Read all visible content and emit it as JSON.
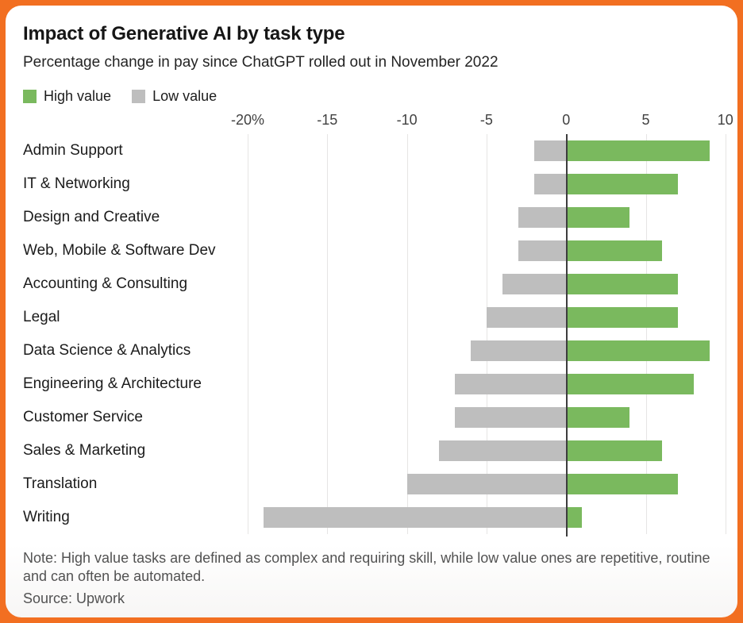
{
  "header": {
    "title": "Impact of Generative AI by task type",
    "subtitle": "Percentage change in pay since ChatGPT rolled out in November 2022"
  },
  "legend": {
    "items": [
      {
        "label": "High value",
        "color": "#7ab95e"
      },
      {
        "label": "Low value",
        "color": "#bebebe"
      }
    ]
  },
  "colors": {
    "frame_border": "#f26f21",
    "bar_high": "#7ab95e",
    "bar_low": "#bebebe",
    "zero_line": "#3d3d3d",
    "gridline": "#e6e5e4"
  },
  "chart_data": {
    "type": "bar",
    "orientation": "horizontal",
    "title": "Impact of Generative AI by task type",
    "subtitle": "Percentage change in pay since ChatGPT rolled out in November 2022",
    "xlabel": "Percentage change in pay",
    "unit": "%",
    "grid": true,
    "legend_position": "top-left",
    "categories": [
      "Admin Support",
      "IT & Networking",
      "Design and Creative",
      "Web, Mobile & Software Dev",
      "Accounting & Consulting",
      "Legal",
      "Data Science & Analytics",
      "Engineering & Architecture",
      "Customer Service",
      "Sales & Marketing",
      "Translation",
      "Writing"
    ],
    "series": [
      {
        "name": "High value",
        "color": "#7ab95e",
        "values": [
          9,
          7,
          4,
          6,
          7,
          7,
          9,
          8,
          4,
          6,
          7,
          1
        ]
      },
      {
        "name": "Low value",
        "color": "#bebebe",
        "values": [
          -2,
          -2,
          -3,
          -3,
          -4,
          -5,
          -6,
          -7,
          -7,
          -8,
          -10,
          -19
        ]
      }
    ],
    "axis": {
      "xmin": -20.35,
      "xmax": 10.06,
      "ticks": [
        {
          "label": "-20%",
          "v": -20
        },
        {
          "label": "-15",
          "v": -15
        },
        {
          "label": "-10",
          "v": -10
        },
        {
          "label": "-5",
          "v": -5
        },
        {
          "label": "0",
          "v": 0
        },
        {
          "label": "5",
          "v": 5
        },
        {
          "label": "10",
          "v": 10
        }
      ]
    }
  },
  "footer": {
    "note": "Note: High value tasks are defined as complex and requiring skill, while low value ones are repetitive, routine and can often be automated.",
    "source": "Source: Upwork"
  }
}
